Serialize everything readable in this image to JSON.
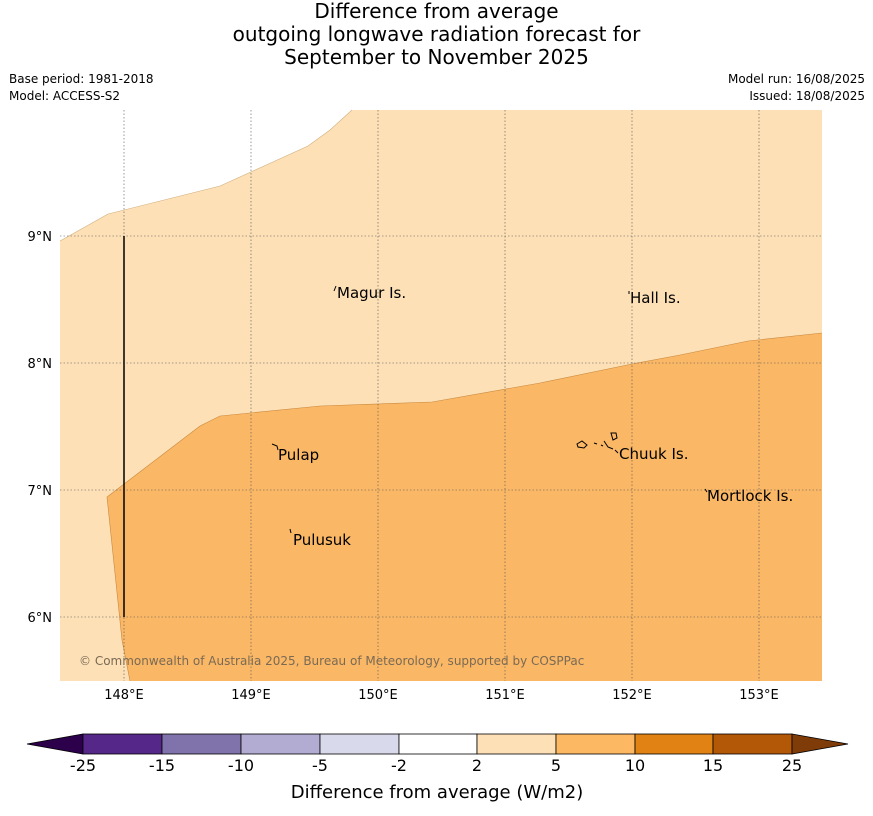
{
  "title": {
    "line1": "Difference from average",
    "line2": "outgoing longwave radiation forecast for",
    "line3": "September to November 2025"
  },
  "meta": {
    "base_period": "Base period: 1981-2018",
    "model": "Model: ACCESS-S2",
    "model_run": "Model run: 16/08/2025",
    "issued": "Issued: 18/08/2025"
  },
  "map": {
    "lat_labels": [
      "9°N",
      "8°N",
      "7°N",
      "6°N"
    ],
    "lon_labels": [
      "148°E",
      "149°E",
      "150°E",
      "151°E",
      "152°E",
      "153°E"
    ],
    "places": {
      "magur": "Magur Is.",
      "hall": "Hall Is.",
      "pulap": "Pulap",
      "chuuk": "Chuuk Is.",
      "mortlock": "Mortlock Is.",
      "pulusuk": "Pulusuk"
    },
    "copyright": "© Commonwealth of Australia 2025, Bureau of Meteorology, supported by COSPPac",
    "colors": {
      "band_2_5": "#fde0b6",
      "band_5_10": "#fab765"
    }
  },
  "colorbar": {
    "label": "Difference from average (W/m2)",
    "ticks": [
      "-25",
      "-15",
      "-10",
      "-5",
      "-2",
      "2",
      "5",
      "10",
      "15",
      "25"
    ],
    "colors": [
      "#2d004b",
      "#542788",
      "#8073ac",
      "#b2abd2",
      "#d8daeb",
      "#ffffff",
      "#fee0b6",
      "#fdb863",
      "#e08214",
      "#b35806",
      "#7f3b08"
    ]
  }
}
